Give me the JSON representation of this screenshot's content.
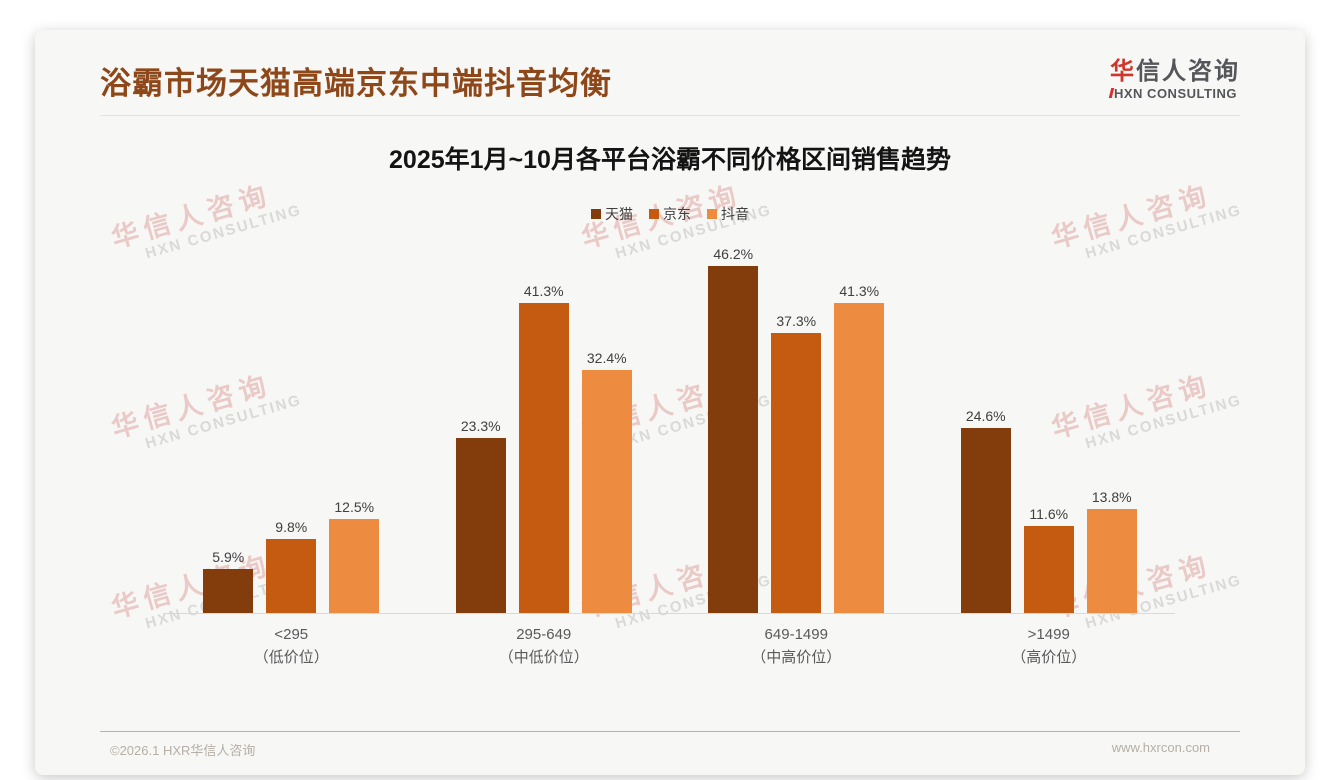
{
  "page": {
    "slide_title": "浴霸市场天猫高端京东中端抖音均衡",
    "logo": {
      "cn_first": "华",
      "cn_rest": "信人咨询",
      "en": "HXN CONSULTING"
    },
    "footer": {
      "left": "©2026.1 HXR华信人咨询",
      "right": "www.hxrcon.com"
    }
  },
  "watermark": {
    "cn": "华信人咨询",
    "en": "HXN CONSULTING"
  },
  "chart_data": {
    "type": "bar",
    "title": "2025年1月~10月各平台浴霸不同价格区间销售趋势",
    "categories": [
      "<295",
      "295-649",
      "649-1499",
      ">1499"
    ],
    "category_sublabels": [
      "（低价位）",
      "（中低价位）",
      "（中高价位）",
      "（高价位）"
    ],
    "series": [
      {
        "name": "天猫",
        "color": "#833C0C",
        "values": [
          5.9,
          23.3,
          46.2,
          24.6
        ]
      },
      {
        "name": "京东",
        "color": "#C55A11",
        "values": [
          9.8,
          41.3,
          37.3,
          11.6
        ]
      },
      {
        "name": "抖音",
        "color": "#ED8B40",
        "values": [
          12.5,
          32.4,
          41.3,
          13.8
        ]
      }
    ],
    "value_suffix": "%",
    "xlabel": "",
    "ylabel": "",
    "ylim": [
      0,
      50
    ],
    "grid": false,
    "legend_position": "top-center"
  },
  "colors": {
    "title_brown": "#8E4718",
    "logo_red": "#D0342C",
    "logo_gray": "#55565A",
    "axis_line": "#d9d9d9",
    "footer_divider": "#c4b296"
  }
}
